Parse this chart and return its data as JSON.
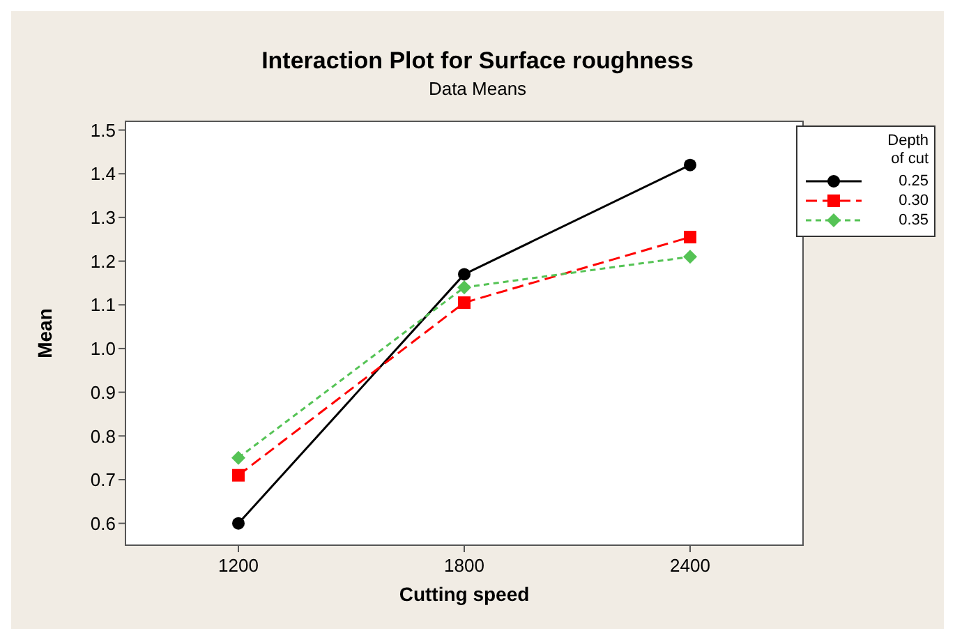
{
  "chart_data": {
    "type": "line",
    "title": "Interaction Plot for Surface roughness",
    "subtitle": "Data Means",
    "xlabel": "Cutting speed",
    "ylabel": "Mean",
    "legend_title": "Depth\nof cut",
    "categories": [
      "1200",
      "1800",
      "2400"
    ],
    "series": [
      {
        "name": "0.25",
        "color": "#000000",
        "values": [
          0.6,
          1.17,
          1.42
        ],
        "marker": "circle",
        "line_style": "solid"
      },
      {
        "name": "0.30",
        "color": "#ff0000",
        "values": [
          0.71,
          1.105,
          1.255
        ],
        "marker": "square",
        "line_style": "dashed"
      },
      {
        "name": "0.35",
        "color": "#55c355",
        "values": [
          0.75,
          1.14,
          1.21
        ],
        "marker": "diamond",
        "line_style": "dotted"
      }
    ],
    "ylim": [
      0.55,
      1.52
    ],
    "yticks": [
      0.6,
      0.7,
      0.8,
      0.9,
      {
        "value": 1,
        "label": "1.0"
      },
      1.1,
      1.2,
      1.3,
      1.4,
      1.5
    ],
    "legend": "right"
  }
}
